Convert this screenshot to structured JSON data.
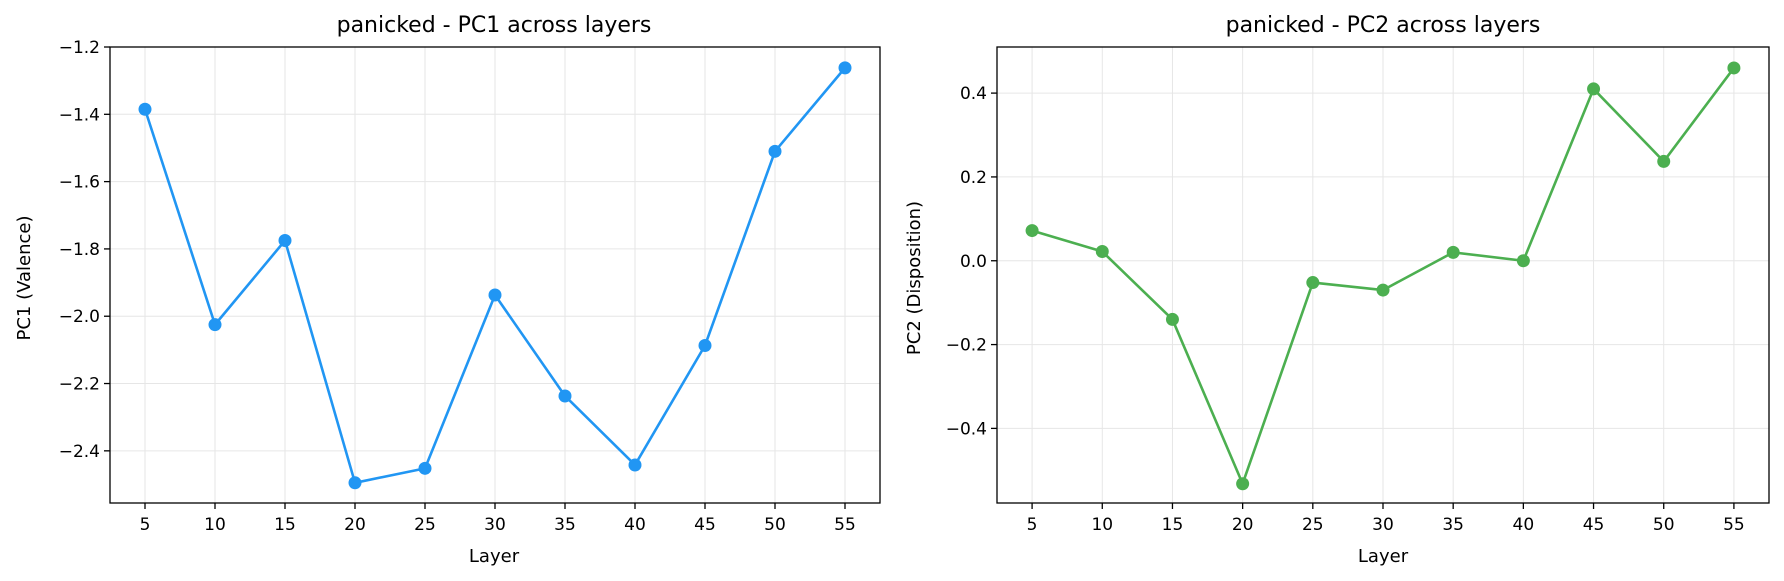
{
  "chart_data": [
    {
      "type": "line",
      "title": "panicked - PC1 across layers",
      "xlabel": "Layer",
      "ylabel": "PC1 (Valence)",
      "x": [
        5,
        10,
        15,
        20,
        25,
        30,
        35,
        40,
        45,
        50,
        55
      ],
      "xticks": [
        "5",
        "10",
        "15",
        "20",
        "25",
        "30",
        "35",
        "40",
        "45",
        "50",
        "55"
      ],
      "xlim": [
        2.5,
        57.5
      ],
      "yticks": [
        "−1.2",
        "−1.4",
        "−1.6",
        "−1.8",
        "−2.0",
        "−2.2",
        "−2.4"
      ],
      "ytick_values": [
        -1.2,
        -1.4,
        -1.6,
        -1.8,
        -2.0,
        -2.2,
        -2.4
      ],
      "ylim": [
        -2.555,
        -1.2
      ],
      "grid": true,
      "series": [
        {
          "color": "#2196f3",
          "marker": "circle",
          "values": [
            -1.385,
            -2.025,
            -1.775,
            -2.495,
            -2.452,
            -1.937,
            -2.237,
            -2.442,
            -2.087,
            -1.51,
            -1.262
          ]
        }
      ]
    },
    {
      "type": "line",
      "title": "panicked - PC2 across layers",
      "xlabel": "Layer",
      "ylabel": "PC2 (Disposition)",
      "x": [
        5,
        10,
        15,
        20,
        25,
        30,
        35,
        40,
        45,
        50,
        55
      ],
      "xticks": [
        "5",
        "10",
        "15",
        "20",
        "25",
        "30",
        "35",
        "40",
        "45",
        "50",
        "55"
      ],
      "xlim": [
        2.5,
        57.5
      ],
      "yticks": [
        "0.4",
        "0.2",
        "0.0",
        "−0.2",
        "−0.4"
      ],
      "ytick_values": [
        0.4,
        0.2,
        0.0,
        -0.2,
        -0.4
      ],
      "ylim": [
        -0.578,
        0.51
      ],
      "grid": true,
      "series": [
        {
          "color": "#4caf50",
          "marker": "circle",
          "values": [
            0.072,
            0.022,
            -0.14,
            -0.532,
            -0.052,
            -0.07,
            0.02,
            0.0,
            0.41,
            0.237,
            0.46
          ]
        }
      ]
    }
  ]
}
